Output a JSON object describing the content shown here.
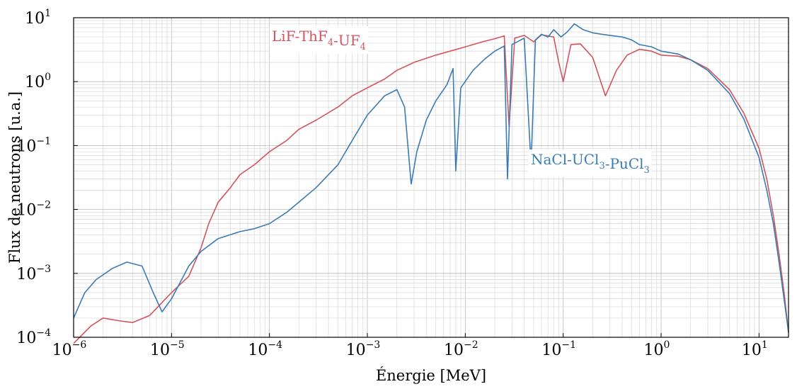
{
  "chart_data": {
    "type": "line",
    "xlabel": "Énergie [MeV]",
    "ylabel": "Flux de neutrons [u.a.]",
    "x_scale": "log",
    "y_scale": "log",
    "xlim": [
      1e-06,
      20
    ],
    "ylim": [
      0.0001,
      10
    ],
    "grid": true,
    "x_ticks": [
      {
        "base": "10",
        "exp": "−6"
      },
      {
        "base": "10",
        "exp": "−5"
      },
      {
        "base": "10",
        "exp": "−4"
      },
      {
        "base": "10",
        "exp": "−3"
      },
      {
        "base": "10",
        "exp": "−2"
      },
      {
        "base": "10",
        "exp": "−1"
      },
      {
        "base": "10",
        "exp": "0"
      },
      {
        "base": "10",
        "exp": "1"
      }
    ],
    "y_ticks": [
      {
        "base": "10",
        "exp": "−4"
      },
      {
        "base": "10",
        "exp": "−3"
      },
      {
        "base": "10",
        "exp": "−2"
      },
      {
        "base": "10",
        "exp": "−1"
      },
      {
        "base": "10",
        "exp": "0"
      },
      {
        "base": "10",
        "exp": "1"
      }
    ],
    "series": [
      {
        "label_parts": [
          {
            "text": "LiF-ThF",
            "sub": "4"
          },
          {
            "text": "-UF",
            "sub": "4"
          }
        ],
        "color": "#d1545e",
        "points": [
          [
            1e-06,
            8e-05
          ],
          [
            1.5e-06,
            0.00015
          ],
          [
            2e-06,
            0.0002
          ],
          [
            3e-06,
            0.00018
          ],
          [
            4e-06,
            0.00017
          ],
          [
            6e-06,
            0.00022
          ],
          [
            8e-06,
            0.00035
          ],
          [
            1e-05,
            0.0005
          ],
          [
            1.5e-05,
            0.0009
          ],
          [
            2e-05,
            0.0025
          ],
          [
            2.4e-05,
            0.006
          ],
          [
            3e-05,
            0.013
          ],
          [
            4e-05,
            0.022
          ],
          [
            5e-05,
            0.035
          ],
          [
            7e-05,
            0.05
          ],
          [
            0.0001,
            0.08
          ],
          [
            0.00015,
            0.12
          ],
          [
            0.0002,
            0.18
          ],
          [
            0.0003,
            0.25
          ],
          [
            0.0005,
            0.4
          ],
          [
            0.0007,
            0.6
          ],
          [
            0.001,
            0.8
          ],
          [
            0.0015,
            1.1
          ],
          [
            0.002,
            1.5
          ],
          [
            0.003,
            2.0
          ],
          [
            0.005,
            2.6
          ],
          [
            0.007,
            3.0
          ],
          [
            0.01,
            3.5
          ],
          [
            0.015,
            4.2
          ],
          [
            0.02,
            4.7
          ],
          [
            0.025,
            5.2
          ],
          [
            0.028,
            0.2
          ],
          [
            0.032,
            4.8
          ],
          [
            0.04,
            5.3
          ],
          [
            0.05,
            4.2
          ],
          [
            0.06,
            5.4
          ],
          [
            0.08,
            5.0
          ],
          [
            0.09,
            2.0
          ],
          [
            0.1,
            1.0
          ],
          [
            0.12,
            3.8
          ],
          [
            0.15,
            3.9
          ],
          [
            0.2,
            2.4
          ],
          [
            0.27,
            0.6
          ],
          [
            0.35,
            1.5
          ],
          [
            0.45,
            2.6
          ],
          [
            0.6,
            3.2
          ],
          [
            0.8,
            3.0
          ],
          [
            1.0,
            2.6
          ],
          [
            1.5,
            2.5
          ],
          [
            2.0,
            2.2
          ],
          [
            3.0,
            1.6
          ],
          [
            5.0,
            0.75
          ],
          [
            7.0,
            0.32
          ],
          [
            10.0,
            0.09
          ],
          [
            12.0,
            0.03
          ],
          [
            14.0,
            0.008
          ],
          [
            16.0,
            0.002
          ],
          [
            18.0,
            0.0005
          ],
          [
            20.0,
            0.00012
          ]
        ]
      },
      {
        "label_parts": [
          {
            "text": "NaCl-UCl",
            "sub": "3"
          },
          {
            "text": "-PuCl",
            "sub": "3"
          }
        ],
        "color": "#3a7bb3",
        "points": [
          [
            1e-06,
            0.0002
          ],
          [
            1.3e-06,
            0.0005
          ],
          [
            1.7e-06,
            0.0008
          ],
          [
            2.5e-06,
            0.0012
          ],
          [
            3.5e-06,
            0.0015
          ],
          [
            5e-06,
            0.0013
          ],
          [
            6.5e-06,
            0.0005
          ],
          [
            8e-06,
            0.00025
          ],
          [
            1e-05,
            0.0004
          ],
          [
            1.5e-05,
            0.0013
          ],
          [
            2e-05,
            0.0022
          ],
          [
            3e-05,
            0.0035
          ],
          [
            5e-05,
            0.0045
          ],
          [
            7e-05,
            0.005
          ],
          [
            0.0001,
            0.006
          ],
          [
            0.00015,
            0.009
          ],
          [
            0.0002,
            0.013
          ],
          [
            0.0003,
            0.022
          ],
          [
            0.0005,
            0.05
          ],
          [
            0.0007,
            0.12
          ],
          [
            0.001,
            0.3
          ],
          [
            0.0015,
            0.6
          ],
          [
            0.002,
            0.75
          ],
          [
            0.0024,
            0.4
          ],
          [
            0.0028,
            0.025
          ],
          [
            0.0032,
            0.08
          ],
          [
            0.004,
            0.25
          ],
          [
            0.005,
            0.5
          ],
          [
            0.0065,
            0.9
          ],
          [
            0.0075,
            1.6
          ],
          [
            0.008,
            0.04
          ],
          [
            0.009,
            0.8
          ],
          [
            0.012,
            1.5
          ],
          [
            0.016,
            2.3
          ],
          [
            0.02,
            3.0
          ],
          [
            0.025,
            3.6
          ],
          [
            0.027,
            0.03
          ],
          [
            0.03,
            3.8
          ],
          [
            0.04,
            4.8
          ],
          [
            0.047,
            0.05
          ],
          [
            0.052,
            4.5
          ],
          [
            0.06,
            5.5
          ],
          [
            0.07,
            5.0
          ],
          [
            0.08,
            6.5
          ],
          [
            0.095,
            5.0
          ],
          [
            0.11,
            6.0
          ],
          [
            0.13,
            8.0
          ],
          [
            0.16,
            6.5
          ],
          [
            0.2,
            5.8
          ],
          [
            0.25,
            5.5
          ],
          [
            0.3,
            5.3
          ],
          [
            0.4,
            5.0
          ],
          [
            0.5,
            4.5
          ],
          [
            0.6,
            3.8
          ],
          [
            0.8,
            3.5
          ],
          [
            1.0,
            3.0
          ],
          [
            1.5,
            2.7
          ],
          [
            2.0,
            2.2
          ],
          [
            3.0,
            1.5
          ],
          [
            5.0,
            0.65
          ],
          [
            7.0,
            0.26
          ],
          [
            10.0,
            0.065
          ],
          [
            12.0,
            0.02
          ],
          [
            14.0,
            0.006
          ],
          [
            16.0,
            0.0015
          ],
          [
            18.0,
            0.0004
          ],
          [
            20.0,
            0.00012
          ]
        ]
      }
    ]
  }
}
